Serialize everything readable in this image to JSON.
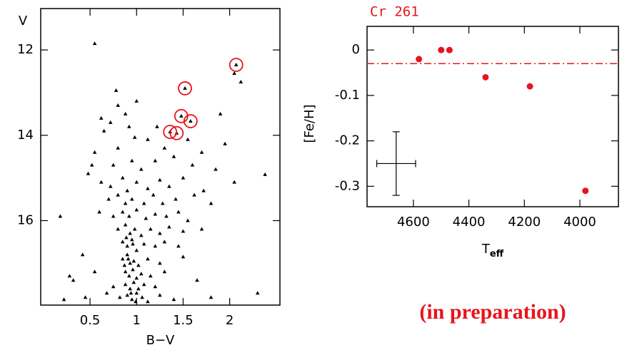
{
  "chart_data": [
    {
      "type": "scatter",
      "xlabel": "B−V",
      "ylabel": "V",
      "xlim": [
        -0.03,
        2.54
      ],
      "ylim": [
        11.03,
        17.98
      ],
      "y_inverted": true,
      "xticks": [
        0.5,
        1,
        1.5,
        2
      ],
      "yticks": [
        12,
        14,
        16
      ],
      "series": [
        {
          "name": "stars",
          "color": "#000000",
          "marker": "triangle",
          "x": [
            0.55,
            0.78,
            2.05,
            2.12,
            1.0,
            0.8,
            0.88,
            0.62,
            0.72,
            0.92,
            0.65,
            0.98,
            1.12,
            1.22,
            1.9,
            0.55,
            0.8,
            1.3,
            1.55,
            1.7,
            1.95,
            0.52,
            0.48,
            0.75,
            0.95,
            1.05,
            1.2,
            1.4,
            1.6,
            1.85,
            2.38,
            0.62,
            0.72,
            0.85,
            0.9,
            1.0,
            1.12,
            1.25,
            1.35,
            1.5,
            1.72,
            2.05,
            0.7,
            0.8,
            0.88,
            0.95,
            1.08,
            1.18,
            1.28,
            1.42,
            1.62,
            1.8,
            0.18,
            0.6,
            0.75,
            0.85,
            0.92,
            1.0,
            1.1,
            1.2,
            1.32,
            1.45,
            1.55,
            0.8,
            0.88,
            0.93,
            0.98,
            1.05,
            1.15,
            1.25,
            1.35,
            1.5,
            1.7,
            0.85,
            0.9,
            0.95,
            1.0,
            1.08,
            1.2,
            1.3,
            1.45,
            0.42,
            0.85,
            0.9,
            0.93,
            0.97,
            1.02,
            1.12,
            1.25,
            1.5,
            0.55,
            0.28,
            0.32,
            0.88,
            0.92,
            0.96,
            1.0,
            1.05,
            1.15,
            1.3,
            0.75,
            0.88,
            0.93,
            0.97,
            1.02,
            1.08,
            1.2,
            1.65,
            0.22,
            0.45,
            0.68,
            0.82,
            0.9,
            0.95,
            1.0,
            1.06,
            1.12,
            1.25,
            1.4,
            1.8,
            2.3,
            0.89,
            0.91,
            0.94,
            0.99,
            0.87,
            0.96,
            2.07,
            1.52,
            1.48,
            1.58,
            1.36,
            1.43
          ],
          "values": [
            11.85,
            12.95,
            12.55,
            12.75,
            13.2,
            13.3,
            13.5,
            13.6,
            13.7,
            13.8,
            13.9,
            14.05,
            14.1,
            13.8,
            13.5,
            14.4,
            14.3,
            14.3,
            14.1,
            14.4,
            14.2,
            14.7,
            14.9,
            14.7,
            14.6,
            14.8,
            14.6,
            14.5,
            14.7,
            14.8,
            14.92,
            15.1,
            15.2,
            15.0,
            15.3,
            15.1,
            15.25,
            15.05,
            15.2,
            15.0,
            15.3,
            15.1,
            15.5,
            15.4,
            15.6,
            15.5,
            15.6,
            15.4,
            15.6,
            15.5,
            15.4,
            15.6,
            15.9,
            15.8,
            15.9,
            15.8,
            15.9,
            15.75,
            15.95,
            15.85,
            15.9,
            15.8,
            16.0,
            16.2,
            16.1,
            16.3,
            16.2,
            16.35,
            16.2,
            16.3,
            16.15,
            16.25,
            16.2,
            16.5,
            16.6,
            16.45,
            16.7,
            16.55,
            16.6,
            16.5,
            16.6,
            16.8,
            16.9,
            16.8,
            17.0,
            16.95,
            17.05,
            16.9,
            17.0,
            16.85,
            17.2,
            17.3,
            17.4,
            17.2,
            17.3,
            17.15,
            17.35,
            17.25,
            17.3,
            17.2,
            17.55,
            17.5,
            17.6,
            17.45,
            17.6,
            17.5,
            17.55,
            17.4,
            17.85,
            17.8,
            17.7,
            17.8,
            17.75,
            17.85,
            17.7,
            17.8,
            17.9,
            17.75,
            17.85,
            17.8,
            17.7,
            16.4,
            16.9,
            17.7,
            17.9,
            17.05,
            16.55,
            12.35,
            12.9,
            13.55,
            13.67,
            13.92,
            13.95
          ]
        },
        {
          "name": "targets",
          "color": "#e8141c",
          "marker": "ring",
          "x": [
            2.07,
            1.52,
            1.48,
            1.58,
            1.36,
            1.43
          ],
          "values": [
            12.35,
            12.9,
            13.55,
            13.67,
            13.92,
            13.95
          ]
        }
      ]
    },
    {
      "type": "scatter",
      "title": "Cr 261",
      "title_color": "#e8141c",
      "xlabel": "T",
      "xlabel_sub": "eff",
      "ylabel": "[Fe/H]",
      "xlim": [
        4767,
        3861
      ],
      "ylim": [
        -0.345,
        0.052
      ],
      "xticks": [
        4600,
        4400,
        4200,
        4000
      ],
      "yticks": [
        0,
        -0.1,
        -0.2,
        -0.3
      ],
      "series": [
        {
          "name": "stars",
          "color": "#e8141c",
          "marker": "dot",
          "x": [
            4580,
            4500,
            4470,
            4340,
            4180,
            3980
          ],
          "values": [
            -0.02,
            0,
            0,
            -0.06,
            -0.08,
            -0.31
          ]
        }
      ],
      "hline": {
        "value": -0.03,
        "color": "#e8141c",
        "style": "dashdot"
      },
      "error_bar": {
        "x": 4662,
        "xerr": 70,
        "y": -0.25,
        "yerr": 0.07
      }
    }
  ],
  "annotation": "(in preparation)"
}
